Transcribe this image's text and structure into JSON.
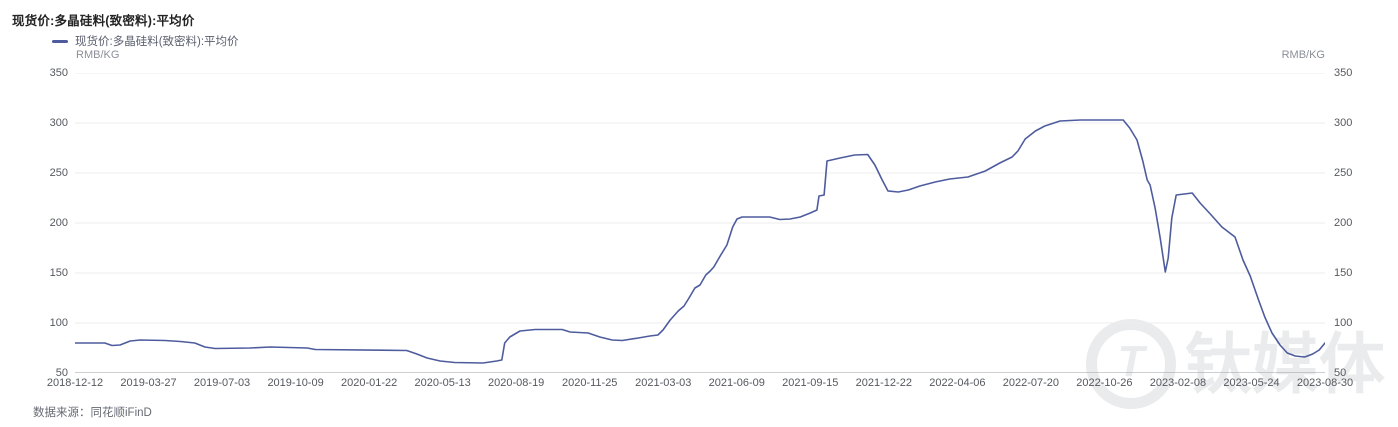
{
  "page": {
    "title": "现货价:多晶硅料(致密料):平均价",
    "source_label": "数据来源：同花顺iFinD",
    "watermark_text": "钛媒体",
    "watermark_logo_glyph": "T"
  },
  "legend": {
    "series_label": "现货价:多晶硅料(致密料):平均价",
    "unit_left": "RMB/KG",
    "unit_right": "RMB/KG"
  },
  "colors": {
    "line": "#4e5c9e",
    "grid": "#ececec",
    "axis": "#9aa0a6",
    "tick_text": "#55585f",
    "watermark": "#eaebec"
  },
  "chart_data": {
    "type": "line",
    "title": "现货价:多晶硅料(致密料):平均价",
    "ylabel": "RMB/KG",
    "ylim": [
      50,
      350
    ],
    "y_ticks": [
      350,
      300,
      250,
      200,
      150,
      100,
      50
    ],
    "grid": true,
    "legend_position": "top-left",
    "x_range": [
      "2018-12-12",
      "2023-08-30"
    ],
    "x_tick_labels": [
      "2018-12-12",
      "2019-03-27",
      "2019-07-03",
      "2019-10-09",
      "2020-01-22",
      "2020-05-13",
      "2020-08-19",
      "2020-11-25",
      "2021-03-03",
      "2021-06-09",
      "2021-09-15",
      "2021-12-22",
      "2022-04-06",
      "2022-07-20",
      "2022-10-26",
      "2023-02-08",
      "2023-05-24",
      "2023-08-30"
    ],
    "series": [
      {
        "name": "现货价:多晶硅料(致密料):平均价",
        "unit": "RMB/KG",
        "points": [
          [
            "2018-12-12",
            80
          ],
          [
            "2019-01-22",
            80
          ],
          [
            "2019-02-01",
            77.5
          ],
          [
            "2019-02-12",
            78
          ],
          [
            "2019-02-26",
            82
          ],
          [
            "2019-03-12",
            83
          ],
          [
            "2019-04-15",
            82.5
          ],
          [
            "2019-05-06",
            81.5
          ],
          [
            "2019-05-26",
            80
          ],
          [
            "2019-06-09",
            76
          ],
          [
            "2019-06-23",
            74.5
          ],
          [
            "2019-08-10",
            75
          ],
          [
            "2019-09-07",
            76
          ],
          [
            "2019-10-28",
            75
          ],
          [
            "2019-11-08",
            73.5
          ],
          [
            "2020-03-13",
            72.5
          ],
          [
            "2020-03-27",
            69
          ],
          [
            "2020-04-10",
            65
          ],
          [
            "2020-04-28",
            62
          ],
          [
            "2020-05-18",
            60.5
          ],
          [
            "2020-06-26",
            60
          ],
          [
            "2020-07-15",
            62
          ],
          [
            "2020-07-22",
            63
          ],
          [
            "2020-07-26",
            80
          ],
          [
            "2020-08-02",
            86
          ],
          [
            "2020-08-16",
            92
          ],
          [
            "2020-09-06",
            93.5
          ],
          [
            "2020-10-13",
            93.5
          ],
          [
            "2020-10-24",
            91
          ],
          [
            "2020-11-18",
            90
          ],
          [
            "2020-12-04",
            86
          ],
          [
            "2020-12-21",
            83
          ],
          [
            "2021-01-04",
            82.5
          ],
          [
            "2021-01-26",
            85
          ],
          [
            "2021-02-11",
            87
          ],
          [
            "2021-02-22",
            88
          ],
          [
            "2021-03-01",
            93
          ],
          [
            "2021-03-11",
            103
          ],
          [
            "2021-03-22",
            112
          ],
          [
            "2021-03-30",
            117
          ],
          [
            "2021-04-05",
            124
          ],
          [
            "2021-04-14",
            135
          ],
          [
            "2021-04-21",
            138
          ],
          [
            "2021-04-29",
            148
          ],
          [
            "2021-05-05",
            152
          ],
          [
            "2021-05-10",
            156
          ],
          [
            "2021-05-18",
            166
          ],
          [
            "2021-05-28",
            178
          ],
          [
            "2021-06-05",
            196
          ],
          [
            "2021-06-11",
            204
          ],
          [
            "2021-06-18",
            206
          ],
          [
            "2021-07-26",
            206
          ],
          [
            "2021-08-09",
            203.5
          ],
          [
            "2021-08-23",
            204
          ],
          [
            "2021-09-06",
            206
          ],
          [
            "2021-09-20",
            210
          ],
          [
            "2021-09-29",
            213
          ],
          [
            "2021-10-02",
            227
          ],
          [
            "2021-10-09",
            228
          ],
          [
            "2021-10-13",
            262
          ],
          [
            "2021-10-31",
            265
          ],
          [
            "2021-11-20",
            268
          ],
          [
            "2021-12-08",
            268.5
          ],
          [
            "2021-12-18",
            258
          ],
          [
            "2021-12-28",
            243
          ],
          [
            "2022-01-05",
            232
          ],
          [
            "2022-01-19",
            231
          ],
          [
            "2022-02-02",
            233
          ],
          [
            "2022-02-18",
            237
          ],
          [
            "2022-03-11",
            241
          ],
          [
            "2022-03-31",
            244
          ],
          [
            "2022-04-25",
            246
          ],
          [
            "2022-05-19",
            252
          ],
          [
            "2022-06-08",
            260
          ],
          [
            "2022-06-25",
            266
          ],
          [
            "2022-07-03",
            272
          ],
          [
            "2022-07-13",
            284
          ],
          [
            "2022-07-27",
            292
          ],
          [
            "2022-08-09",
            297
          ],
          [
            "2022-08-30",
            302
          ],
          [
            "2022-09-27",
            303
          ],
          [
            "2022-11-25",
            303
          ],
          [
            "2022-12-04",
            295
          ],
          [
            "2022-12-14",
            283
          ],
          [
            "2022-12-22",
            262
          ],
          [
            "2022-12-28",
            243
          ],
          [
            "2023-01-01",
            238
          ],
          [
            "2023-01-08",
            215
          ],
          [
            "2023-01-15",
            185
          ],
          [
            "2023-01-22",
            151
          ],
          [
            "2023-01-26",
            165
          ],
          [
            "2023-01-31",
            205
          ],
          [
            "2023-02-06",
            228
          ],
          [
            "2023-02-28",
            230
          ],
          [
            "2023-03-11",
            220
          ],
          [
            "2023-03-25",
            209
          ],
          [
            "2023-04-10",
            196
          ],
          [
            "2023-04-28",
            186
          ],
          [
            "2023-05-09",
            163
          ],
          [
            "2023-05-19",
            147
          ],
          [
            "2023-05-30",
            124
          ],
          [
            "2023-06-08",
            106
          ],
          [
            "2023-06-18",
            90
          ],
          [
            "2023-06-29",
            78
          ],
          [
            "2023-07-09",
            70
          ],
          [
            "2023-07-20",
            67
          ],
          [
            "2023-08-02",
            66
          ],
          [
            "2023-08-13",
            69
          ],
          [
            "2023-08-22",
            73
          ],
          [
            "2023-08-30",
            80
          ]
        ]
      }
    ]
  }
}
